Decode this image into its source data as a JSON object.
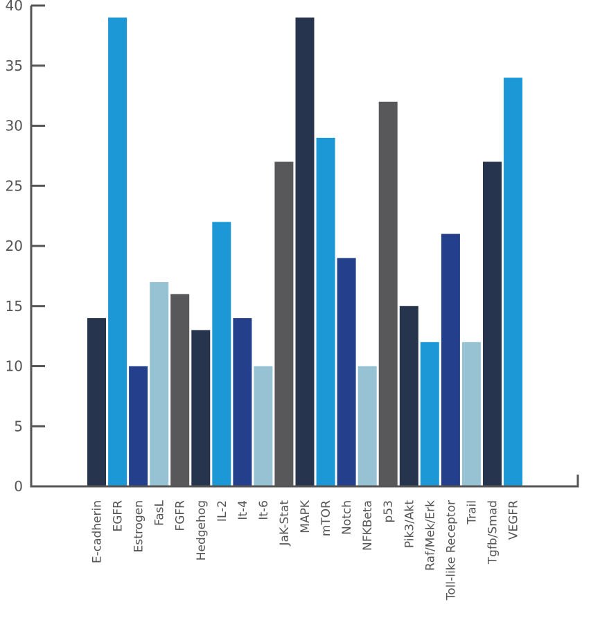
{
  "chart_data": {
    "type": "bar",
    "title": "",
    "xlabel": "",
    "ylabel": "",
    "ylim": [
      0,
      40
    ],
    "yticks": [
      0,
      5,
      10,
      15,
      20,
      25,
      30,
      35,
      40
    ],
    "ytick_labels": [
      "0",
      "5",
      "10",
      "15",
      "20",
      "25",
      "30",
      "35",
      "40"
    ],
    "grid": false,
    "legend": "none",
    "categories": [
      "E-cadherin",
      "EGFR",
      "Estrogen",
      "FasL",
      "FGFR",
      "Hedgehog",
      "IL-2",
      "It-4",
      "It-6",
      "JaK-Stat",
      "MAPK",
      "mTOR",
      "Notch",
      "NFKBeta",
      "p53",
      "Pik3/Akt",
      "Raf/Mek/Erk",
      "Toll-like Receptor",
      "Trail",
      "Tgfb/Smad",
      "VEGFR"
    ],
    "values": [
      14,
      39,
      10,
      17,
      16,
      13,
      22,
      14,
      10,
      27,
      39,
      29,
      19,
      10,
      32,
      15,
      12,
      21,
      12,
      27,
      34
    ],
    "bar_colors": [
      "#27344d",
      "#1b98d5",
      "#24408c",
      "#96c2d3",
      "#58585b",
      "#27344d",
      "#1b98d5",
      "#24408c",
      "#96c2d3",
      "#58585b",
      "#27344d",
      "#1b98d5",
      "#24408c",
      "#96c2d3",
      "#58585b",
      "#27344d",
      "#1b98d5",
      "#24408c",
      "#96c2d3",
      "#27344d",
      "#1b98d5"
    ]
  },
  "colors": {
    "axis": "#555555"
  }
}
